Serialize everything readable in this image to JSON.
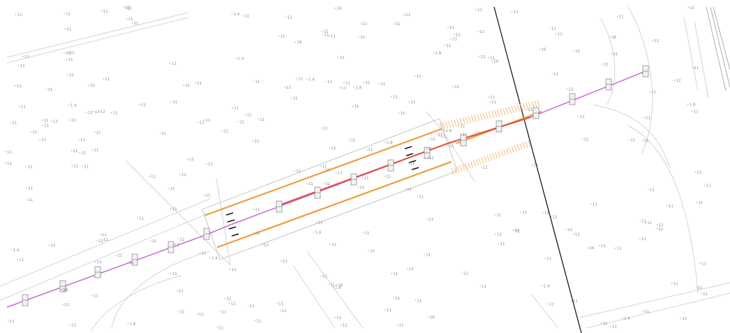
{
  "map": {
    "colors": {
      "background": "#ffffff",
      "centerline": "#c86bd6",
      "bridge_centerline": "#e2513b",
      "embankment": "#ef9c3c",
      "slope_hatch": "#f3b46a",
      "grid_line": "#1a1a1a",
      "terrain_line": "#cfcfcf",
      "elevation_text": "#8a8a8a"
    },
    "features": [
      "route-centerline",
      "bridge-centerline",
      "embankment-lines",
      "slope-hatching",
      "station-markers",
      "elevation-points",
      "sheet-boundary-line"
    ],
    "station_marker_label": "░",
    "elevation_labels": [
      "11",
      "12",
      "11",
      "16",
      "11",
      "1.4",
      "11",
      "11",
      "11",
      "11",
      "11",
      "11",
      "11",
      "11",
      "11",
      "11",
      "1.8",
      "11",
      "11",
      "12",
      "11",
      "11",
      "11",
      "11",
      "11",
      "11",
      "11",
      "11",
      "11",
      "11",
      "11",
      "11"
    ]
  }
}
